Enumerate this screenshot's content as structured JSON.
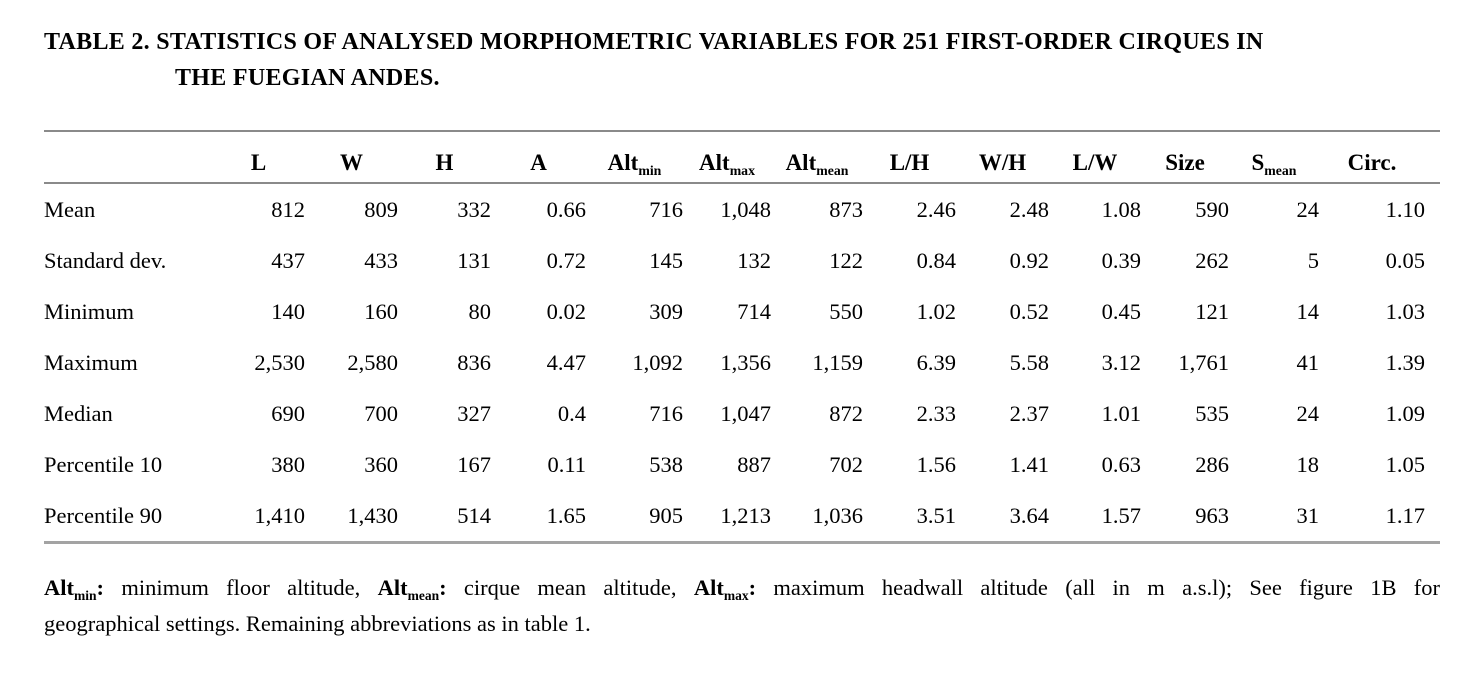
{
  "title": {
    "line1": "TABLE 2. STATISTICS OF ANALYSED MORPHOMETRIC VARIABLES FOR 251 FIRST-ORDER CIRQUES IN",
    "line2": "THE FUEGIAN ANDES."
  },
  "table": {
    "columns": [
      {
        "base": "L"
      },
      {
        "base": "W"
      },
      {
        "base": "H"
      },
      {
        "base": "A"
      },
      {
        "base": "Alt",
        "sub": "min"
      },
      {
        "base": "Alt",
        "sub": "max"
      },
      {
        "base": "Alt",
        "sub": "mean"
      },
      {
        "base": "L/H"
      },
      {
        "base": "W/H"
      },
      {
        "base": "L/W"
      },
      {
        "base": "Size"
      },
      {
        "base": "S",
        "sub": "mean"
      },
      {
        "base": "Circ."
      }
    ],
    "rows": [
      {
        "label": "Mean",
        "values": [
          "812",
          "809",
          "332",
          "0.66",
          "716",
          "1,048",
          "873",
          "2.46",
          "2.48",
          "1.08",
          "590",
          "24",
          "1.10"
        ]
      },
      {
        "label": "Standard dev.",
        "values": [
          "437",
          "433",
          "131",
          "0.72",
          "145",
          "132",
          "122",
          "0.84",
          "0.92",
          "0.39",
          "262",
          "5",
          "0.05"
        ]
      },
      {
        "label": "Minimum",
        "values": [
          "140",
          "160",
          "80",
          "0.02",
          "309",
          "714",
          "550",
          "1.02",
          "0.52",
          "0.45",
          "121",
          "14",
          "1.03"
        ]
      },
      {
        "label": "Maximum",
        "values": [
          "2,530",
          "2,580",
          "836",
          "4.47",
          "1,092",
          "1,356",
          "1,159",
          "6.39",
          "5.58",
          "3.12",
          "1,761",
          "41",
          "1.39"
        ]
      },
      {
        "label": "Median",
        "values": [
          "690",
          "700",
          "327",
          "0.4",
          "716",
          "1,047",
          "872",
          "2.33",
          "2.37",
          "1.01",
          "535",
          "24",
          "1.09"
        ]
      },
      {
        "label": "Percentile 10",
        "values": [
          "380",
          "360",
          "167",
          "0.11",
          "538",
          "887",
          "702",
          "1.56",
          "1.41",
          "0.63",
          "286",
          "18",
          "1.05"
        ]
      },
      {
        "label": "Percentile 90",
        "values": [
          "1,410",
          "1,430",
          "514",
          "1.65",
          "905",
          "1,213",
          "1,036",
          "3.51",
          "3.64",
          "1.57",
          "963",
          "31",
          "1.17"
        ]
      }
    ]
  },
  "footnote": {
    "line1": [
      {
        "t": "Alt",
        "b": true
      },
      {
        "t": "min",
        "b": true,
        "s": true
      },
      {
        "t": ":",
        "b": true
      },
      {
        "t": " minimum floor altitude, "
      },
      {
        "t": "Alt",
        "b": true
      },
      {
        "t": "mean",
        "b": true,
        "s": true
      },
      {
        "t": ":",
        "b": true
      },
      {
        "t": " cirque mean altitude, "
      },
      {
        "t": "Alt",
        "b": true
      },
      {
        "t": "max",
        "b": true,
        "s": true
      },
      {
        "t": ":",
        "b": true
      },
      {
        "t": " maximum headwall altitude (all in m a.s.l); See figure 1B for"
      }
    ],
    "line2": [
      {
        "t": "geographical settings. Remaining abbreviations as in table 1."
      }
    ]
  },
  "colors": {
    "text": "#000000",
    "rule_top": "#8a8a8a",
    "rule_header": "#8a8a8a",
    "rule_bottom": "#a3a3a3",
    "background": "#ffffff"
  }
}
